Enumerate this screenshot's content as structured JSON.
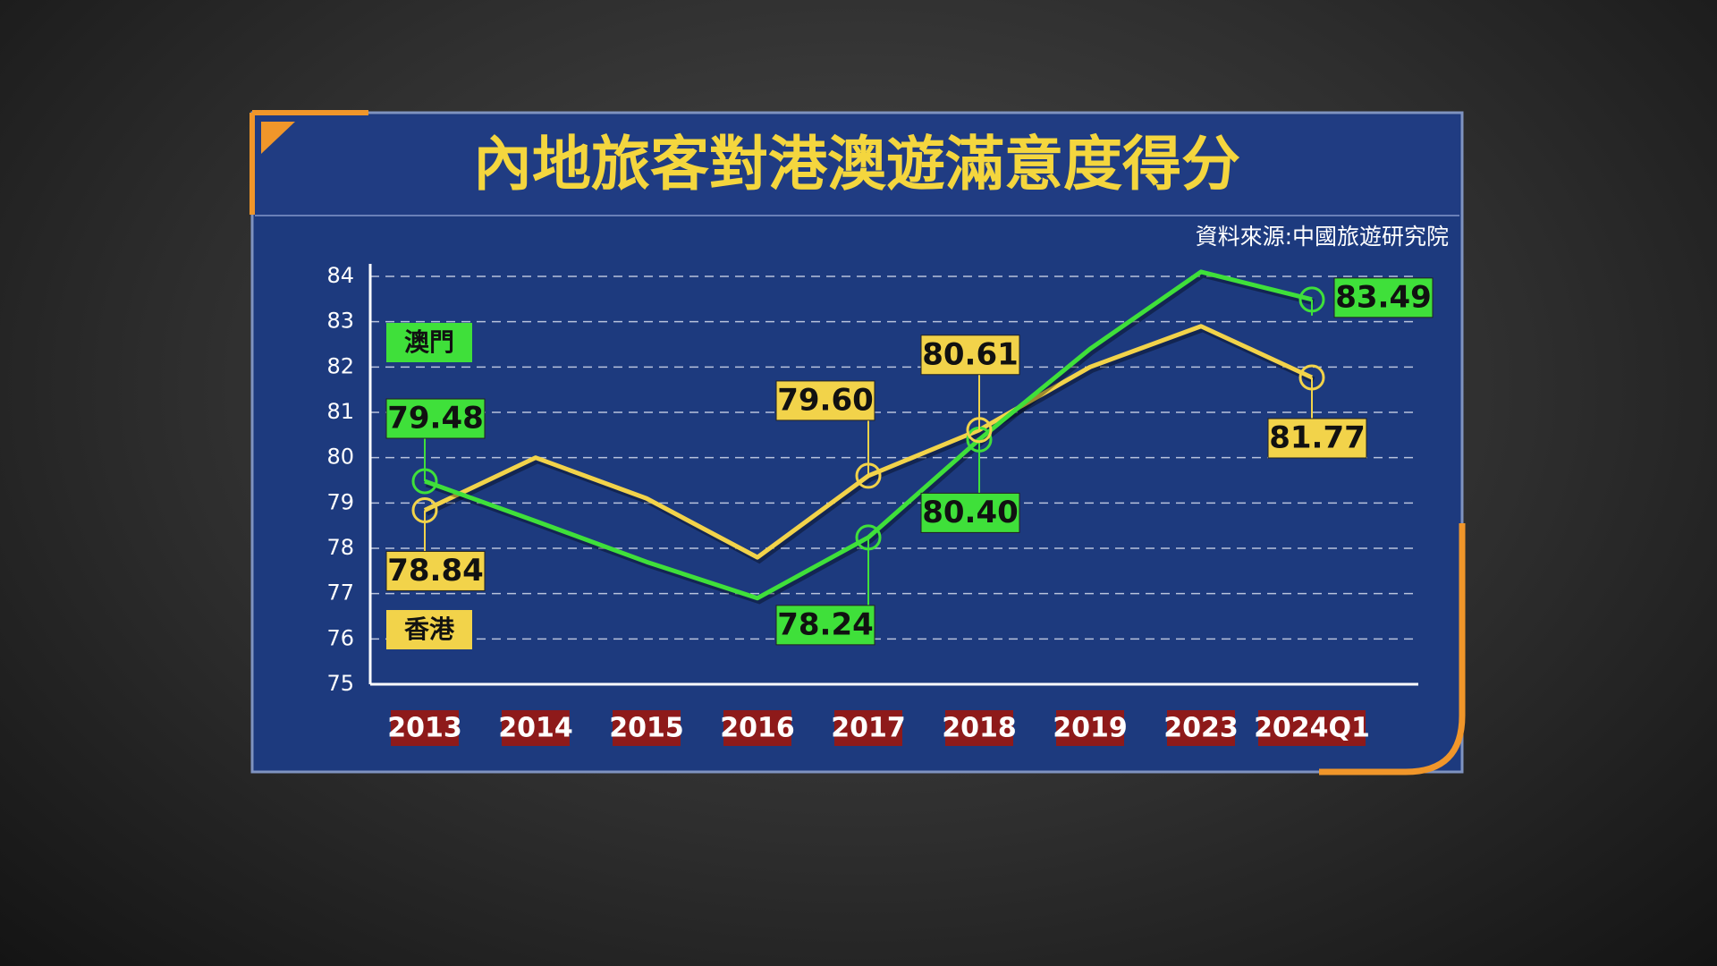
{
  "chart_data": {
    "type": "line",
    "title": "內地旅客對港澳遊滿意度得分",
    "source": "資料來源:中國旅遊研究院",
    "categories": [
      "2013",
      "2014",
      "2015",
      "2016",
      "2017",
      "2018",
      "2019",
      "2023",
      "2024Q1"
    ],
    "series": [
      {
        "name": "澳門",
        "color": "#3fe03a",
        "values": [
          79.48,
          78.6,
          77.7,
          76.9,
          78.24,
          80.4,
          82.4,
          84.1,
          83.49
        ],
        "value_labels": [
          "79.48",
          null,
          null,
          null,
          "78.24",
          "80.40",
          null,
          null,
          "83.49"
        ]
      },
      {
        "name": "香港",
        "color": "#f2d34a",
        "values": [
          78.84,
          80.0,
          79.1,
          77.8,
          79.6,
          80.61,
          82.0,
          82.9,
          81.77
        ],
        "value_labels": [
          "78.84",
          null,
          null,
          null,
          "79.60",
          "80.61",
          null,
          null,
          "81.77"
        ]
      }
    ],
    "ylim": [
      75,
      84
    ],
    "yticks": [
      75,
      76,
      77,
      78,
      79,
      80,
      81,
      82,
      83,
      84
    ],
    "grid": true
  }
}
